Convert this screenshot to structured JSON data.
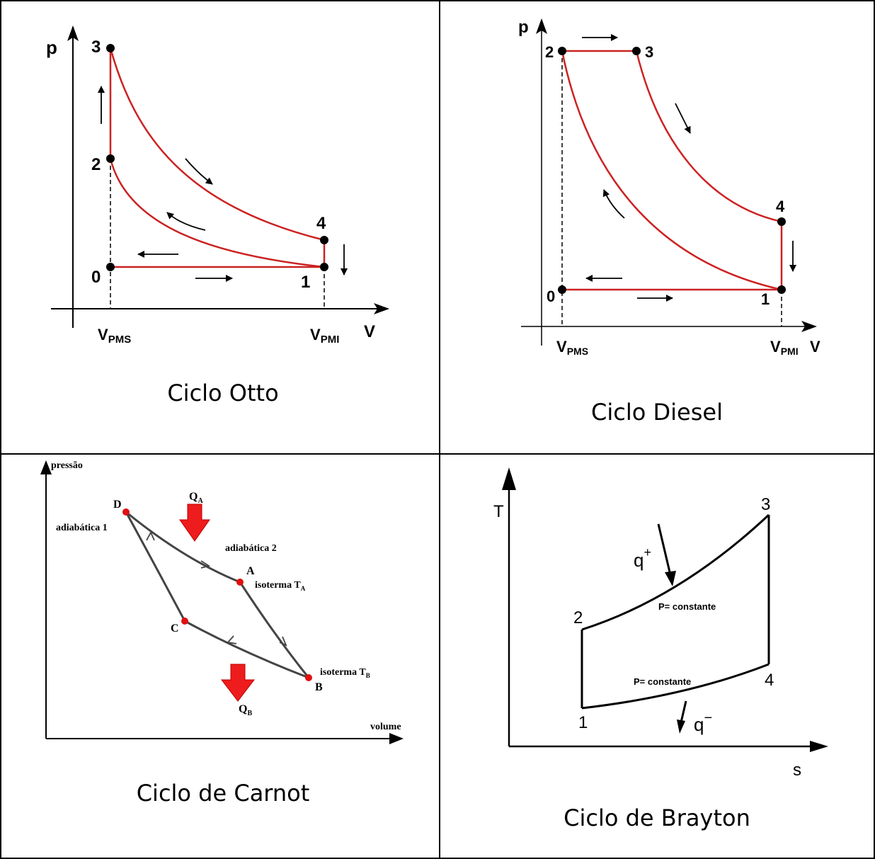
{
  "colors": {
    "curve": "#cc2222",
    "point": "#000000",
    "carnot_point": "#e01010",
    "arrow_red": "#ee1c1c",
    "line": "#000000",
    "carnot_line": "#444444"
  },
  "otto": {
    "caption": "Ciclo Otto",
    "axis_y": "p",
    "axis_x": "V",
    "v_pms": "V",
    "v_pms_sub": "PMS",
    "v_pmi": "V",
    "v_pmi_sub": "PMI",
    "points": [
      "0",
      "1",
      "2",
      "3",
      "4"
    ]
  },
  "diesel": {
    "caption": "Ciclo Diesel",
    "axis_y": "p",
    "axis_x": "V",
    "v_pms": "V",
    "v_pms_sub": "PMS",
    "v_pmi": "V",
    "v_pmi_sub": "PMI",
    "points": [
      "0",
      "1",
      "2",
      "3",
      "4"
    ]
  },
  "carnot": {
    "caption": "Ciclo de Carnot",
    "axis_y": "pressão",
    "axis_x": "volume",
    "qa": "Q",
    "qa_sub": "A",
    "qb": "Q",
    "qb_sub": "B",
    "adiabatic1": "adiabática 1",
    "adiabatic2": "adiabática 2",
    "isotherm_a": "isoterma T",
    "isotherm_a_sub": "A",
    "isotherm_b": "isoterma T",
    "isotherm_b_sub": "B",
    "points": [
      "A",
      "B",
      "C",
      "D"
    ]
  },
  "brayton": {
    "caption": "Ciclo de Brayton",
    "axis_y": "T",
    "axis_x": "s",
    "q_plus": "q",
    "q_plus_sup": "+",
    "q_minus": "q",
    "q_minus_sup": "−",
    "p_const_top": "P= constante",
    "p_const_bottom": "P= constante",
    "points": [
      "1",
      "2",
      "3",
      "4"
    ]
  }
}
